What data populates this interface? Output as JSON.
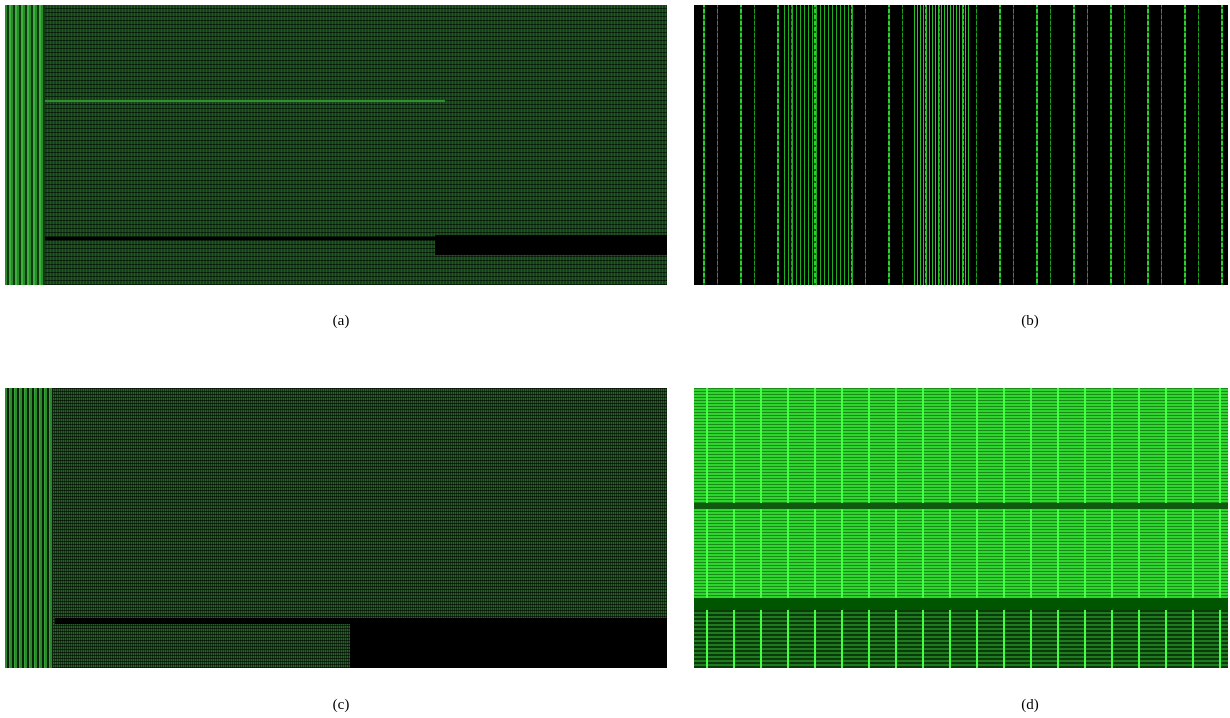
{
  "panels": [
    {
      "caption": "(a)"
    },
    {
      "caption": "(b)"
    },
    {
      "caption": "(c)"
    },
    {
      "caption": "(d)"
    }
  ]
}
